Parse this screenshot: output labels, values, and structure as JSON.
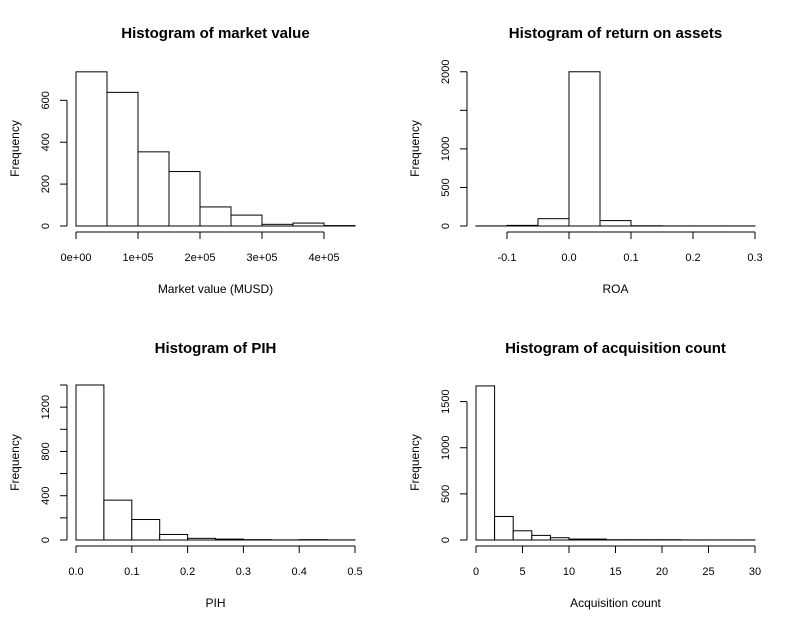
{
  "chart_data": [
    {
      "type": "bar",
      "title": "Histogram of market value",
      "xlabel": "Market value (MUSD)",
      "ylabel": "Frequency",
      "x_ticks": [
        0,
        100000,
        200000,
        300000,
        400000
      ],
      "x_tick_labels": [
        "0e+00",
        "1e+05",
        "2e+05",
        "3e+05",
        "4e+05"
      ],
      "y_ticks": [
        0,
        200,
        400,
        600
      ],
      "y_tick_labels": [
        "0",
        "200",
        "400",
        "600"
      ],
      "xlim": [
        0,
        450000
      ],
      "ylim": [
        0,
        740
      ],
      "bins": [
        {
          "from": 0,
          "to": 50000,
          "count": 736
        },
        {
          "from": 50000,
          "to": 100000,
          "count": 638
        },
        {
          "from": 100000,
          "to": 150000,
          "count": 354
        },
        {
          "from": 150000,
          "to": 200000,
          "count": 260
        },
        {
          "from": 200000,
          "to": 250000,
          "count": 91
        },
        {
          "from": 250000,
          "to": 300000,
          "count": 52
        },
        {
          "from": 300000,
          "to": 350000,
          "count": 8
        },
        {
          "from": 350000,
          "to": 400000,
          "count": 14
        },
        {
          "from": 400000,
          "to": 450000,
          "count": 2
        }
      ]
    },
    {
      "type": "bar",
      "title": "Histogram of return on assets",
      "xlabel": "ROA",
      "ylabel": "Frequency",
      "x_ticks": [
        -0.1,
        0.0,
        0.1,
        0.2,
        0.3
      ],
      "x_tick_labels": [
        "-0.1",
        "0.0",
        "0.1",
        "0.2",
        "0.3"
      ],
      "y_ticks": [
        0,
        500,
        1000,
        2000
      ],
      "y_tick_labels": [
        "0",
        "500",
        "1000",
        "2000"
      ],
      "y_minor_ticks": [
        1500
      ],
      "xlim": [
        -0.15,
        0.3
      ],
      "ylim": [
        0,
        2010
      ],
      "bins": [
        {
          "from": -0.15,
          "to": -0.1,
          "count": 1
        },
        {
          "from": -0.1,
          "to": -0.05,
          "count": 8
        },
        {
          "from": -0.05,
          "to": 0.0,
          "count": 95
        },
        {
          "from": 0.0,
          "to": 0.05,
          "count": 2000
        },
        {
          "from": 0.05,
          "to": 0.1,
          "count": 70
        },
        {
          "from": 0.1,
          "to": 0.15,
          "count": 3
        },
        {
          "from": 0.15,
          "to": 0.2,
          "count": 1
        },
        {
          "from": 0.2,
          "to": 0.25,
          "count": 1
        },
        {
          "from": 0.25,
          "to": 0.3,
          "count": 1
        }
      ]
    },
    {
      "type": "bar",
      "title": "Histogram of PIH",
      "xlabel": "PIH",
      "ylabel": "Frequency",
      "x_ticks": [
        0.0,
        0.1,
        0.2,
        0.3,
        0.4,
        0.5
      ],
      "x_tick_labels": [
        "0.0",
        "0.1",
        "0.2",
        "0.3",
        "0.4",
        "0.5"
      ],
      "y_ticks": [
        0,
        400,
        800,
        1200
      ],
      "y_tick_labels": [
        "0",
        "400",
        "800",
        "1200"
      ],
      "y_minor_ticks": [
        200,
        600,
        1000,
        1400
      ],
      "xlim": [
        0,
        0.5
      ],
      "ylim": [
        0,
        1400
      ],
      "bins": [
        {
          "from": 0.0,
          "to": 0.05,
          "count": 1400
        },
        {
          "from": 0.05,
          "to": 0.1,
          "count": 360
        },
        {
          "from": 0.1,
          "to": 0.15,
          "count": 185
        },
        {
          "from": 0.15,
          "to": 0.2,
          "count": 50
        },
        {
          "from": 0.2,
          "to": 0.25,
          "count": 15
        },
        {
          "from": 0.25,
          "to": 0.3,
          "count": 8
        },
        {
          "from": 0.3,
          "to": 0.35,
          "count": 3
        },
        {
          "from": 0.35,
          "to": 0.4,
          "count": 1
        },
        {
          "from": 0.4,
          "to": 0.45,
          "count": 3
        },
        {
          "from": 0.45,
          "to": 0.5,
          "count": 1
        }
      ]
    },
    {
      "type": "bar",
      "title": "Histogram of acquisition count",
      "xlabel": "Acquisition count",
      "ylabel": "Frequency",
      "x_ticks": [
        0,
        5,
        10,
        15,
        20,
        25,
        30
      ],
      "x_tick_labels": [
        "0",
        "5",
        "10",
        "15",
        "20",
        "25",
        "30"
      ],
      "y_ticks": [
        0,
        500,
        1000,
        1500
      ],
      "y_tick_labels": [
        "0",
        "500",
        "1000",
        "1500"
      ],
      "xlim": [
        0,
        30
      ],
      "ylim": [
        0,
        1680
      ],
      "bins": [
        {
          "from": 0,
          "to": 2,
          "count": 1670
        },
        {
          "from": 2,
          "to": 4,
          "count": 255
        },
        {
          "from": 4,
          "to": 6,
          "count": 100
        },
        {
          "from": 6,
          "to": 8,
          "count": 50
        },
        {
          "from": 8,
          "to": 10,
          "count": 25
        },
        {
          "from": 10,
          "to": 12,
          "count": 10
        },
        {
          "from": 12,
          "to": 14,
          "count": 10
        },
        {
          "from": 14,
          "to": 16,
          "count": 3
        },
        {
          "from": 16,
          "to": 18,
          "count": 3
        },
        {
          "from": 18,
          "to": 20,
          "count": 3
        },
        {
          "from": 20,
          "to": 22,
          "count": 3
        },
        {
          "from": 22,
          "to": 24,
          "count": 1
        },
        {
          "from": 24,
          "to": 26,
          "count": 1
        },
        {
          "from": 26,
          "to": 28,
          "count": 1
        },
        {
          "from": 28,
          "to": 30,
          "count": 1
        }
      ]
    }
  ]
}
